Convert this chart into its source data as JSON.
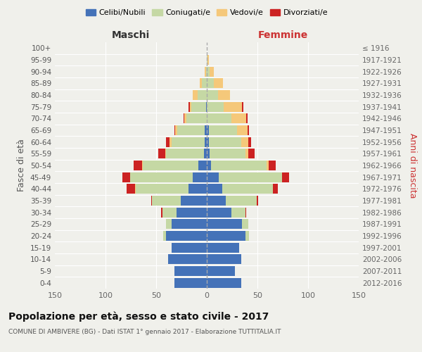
{
  "age_groups": [
    "0-4",
    "5-9",
    "10-14",
    "15-19",
    "20-24",
    "25-29",
    "30-34",
    "35-39",
    "40-44",
    "45-49",
    "50-54",
    "55-59",
    "60-64",
    "65-69",
    "70-74",
    "75-79",
    "80-84",
    "85-89",
    "90-94",
    "95-99",
    "100+"
  ],
  "birth_years": [
    "2012-2016",
    "2007-2011",
    "2002-2006",
    "1997-2001",
    "1992-1996",
    "1987-1991",
    "1982-1986",
    "1977-1981",
    "1972-1976",
    "1967-1971",
    "1962-1966",
    "1957-1961",
    "1952-1956",
    "1947-1951",
    "1942-1946",
    "1937-1941",
    "1932-1936",
    "1927-1931",
    "1922-1926",
    "1917-1921",
    "≤ 1916"
  ],
  "males": {
    "celibi": [
      32,
      32,
      38,
      35,
      40,
      35,
      30,
      26,
      18,
      14,
      8,
      3,
      2,
      2,
      0,
      1,
      0,
      0,
      0,
      0,
      0
    ],
    "coniugati": [
      0,
      0,
      0,
      0,
      3,
      5,
      14,
      28,
      52,
      62,
      55,
      37,
      33,
      27,
      20,
      14,
      9,
      5,
      1,
      0,
      0
    ],
    "vedovi": [
      0,
      0,
      0,
      0,
      0,
      0,
      0,
      0,
      1,
      0,
      1,
      1,
      2,
      2,
      2,
      2,
      5,
      2,
      1,
      0,
      0
    ],
    "divorziati": [
      0,
      0,
      0,
      0,
      0,
      0,
      1,
      1,
      8,
      7,
      8,
      7,
      3,
      1,
      1,
      1,
      0,
      0,
      0,
      0,
      0
    ]
  },
  "females": {
    "nubili": [
      34,
      28,
      34,
      32,
      38,
      35,
      24,
      19,
      15,
      12,
      4,
      3,
      2,
      2,
      0,
      0,
      0,
      0,
      0,
      0,
      0
    ],
    "coniugate": [
      0,
      0,
      0,
      0,
      4,
      6,
      14,
      30,
      50,
      62,
      55,
      35,
      32,
      28,
      24,
      17,
      11,
      7,
      3,
      1,
      0
    ],
    "vedove": [
      0,
      0,
      0,
      0,
      0,
      0,
      0,
      0,
      0,
      0,
      2,
      3,
      7,
      10,
      15,
      18,
      12,
      9,
      4,
      1,
      0
    ],
    "divorziate": [
      0,
      0,
      0,
      0,
      0,
      0,
      1,
      2,
      5,
      7,
      7,
      6,
      3,
      2,
      1,
      1,
      0,
      0,
      0,
      0,
      0
    ]
  },
  "colors": {
    "celibi": "#4472b8",
    "coniugati": "#c5d8a4",
    "vedovi": "#f5c87a",
    "divorziati": "#cc2222"
  },
  "title": "Popolazione per età, sesso e stato civile - 2017",
  "subtitle": "COMUNE DI AMBIVERE (BG) - Dati ISTAT 1° gennaio 2017 - Elaborazione TUTTITALIA.IT",
  "xlabel_left": "Maschi",
  "xlabel_right": "Femmine",
  "ylabel_left": "Fasce di età",
  "ylabel_right": "Anni di nascita",
  "xlim": 150,
  "legend_labels": [
    "Celibi/Nubili",
    "Coniugati/e",
    "Vedovi/e",
    "Divorziati/e"
  ],
  "background_color": "#f0f0eb",
  "plot_bg": "#f0f0eb",
  "grid_color": "#ffffff",
  "dashed_line_color": "#aaaaaa"
}
